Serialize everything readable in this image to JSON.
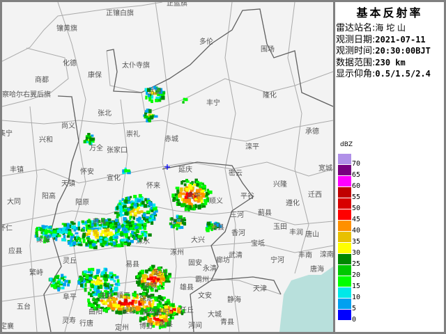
{
  "panel": {
    "title": "基本反射率",
    "rows": [
      {
        "label": "雷达站名:",
        "value": "海 坨 山"
      },
      {
        "label": "观测日期:",
        "value": "2021-07-11"
      },
      {
        "label": "观测时间:",
        "value": "20:30:00BJT"
      },
      {
        "label": "数据范围:",
        "value": "230 km"
      },
      {
        "label": "显示仰角:",
        "value": "0.5/1.5/2.4"
      }
    ]
  },
  "legend": {
    "unit": "dBZ",
    "items": [
      {
        "value": "70",
        "color": "#b090e8"
      },
      {
        "value": "65",
        "color": "#780080"
      },
      {
        "value": "60",
        "color": "#ff00ff"
      },
      {
        "value": "55",
        "color": "#c00000"
      },
      {
        "value": "50",
        "color": "#d80000"
      },
      {
        "value": "45",
        "color": "#ff0000"
      },
      {
        "value": "40",
        "color": "#ff9000"
      },
      {
        "value": "35",
        "color": "#e8c000"
      },
      {
        "value": "30",
        "color": "#ffff00"
      },
      {
        "value": "25",
        "color": "#008800"
      },
      {
        "value": "20",
        "color": "#00c800"
      },
      {
        "value": "15",
        "color": "#00ff00"
      },
      {
        "value": "10",
        "color": "#00e8e8"
      },
      {
        "value": "5",
        "color": "#00a0f0"
      },
      {
        "value": "0",
        "color": "#0000ff"
      }
    ]
  },
  "map": {
    "sea_color": "#b8e0dc",
    "places": [
      "正镶白旗",
      "正蓝旗",
      "镶黄旗",
      "多伦",
      "化德",
      "康保",
      "太仆寺旗",
      "围场",
      "商都",
      "察哈尔右翼后旗",
      "沽源",
      "隆化",
      "丰宁",
      "张北",
      "尚义",
      "崇礼",
      "赤城",
      "承德",
      "滦平",
      "集宁",
      "兴和",
      "万全",
      "张家口",
      "丰镇",
      "怀安",
      "宣化",
      "密云",
      "兴隆",
      "宽城",
      "天镇",
      "延庆",
      "阳高",
      "平谷",
      "迁西",
      "遵化",
      "大同",
      "阳原",
      "顺义",
      "昌平",
      "怀来",
      "三河",
      "蓟县",
      "怀仁",
      "玉田",
      "丰润",
      "唐山",
      "北京",
      "通县",
      "涞源",
      "蔚县",
      "大兴",
      "香河",
      "宝坻",
      "应县",
      "涿州",
      "涞水",
      "武清",
      "宁河",
      "丰南",
      "滦南",
      "灵丘",
      "易县",
      "固安",
      "永清",
      "廊坊",
      "繁峙",
      "唐海",
      "天津",
      "霸州",
      "雄县",
      "阜平",
      "五台",
      "静海",
      "文安",
      "任丘",
      "大城",
      "曲阳",
      "灵寿",
      "行唐",
      "青县",
      "河间",
      "蠡县",
      "定襄",
      "唐县",
      "顺平",
      "望都",
      "满城",
      "保定",
      "清苑",
      "高阳",
      "博野",
      "定州",
      "定兴"
    ]
  }
}
